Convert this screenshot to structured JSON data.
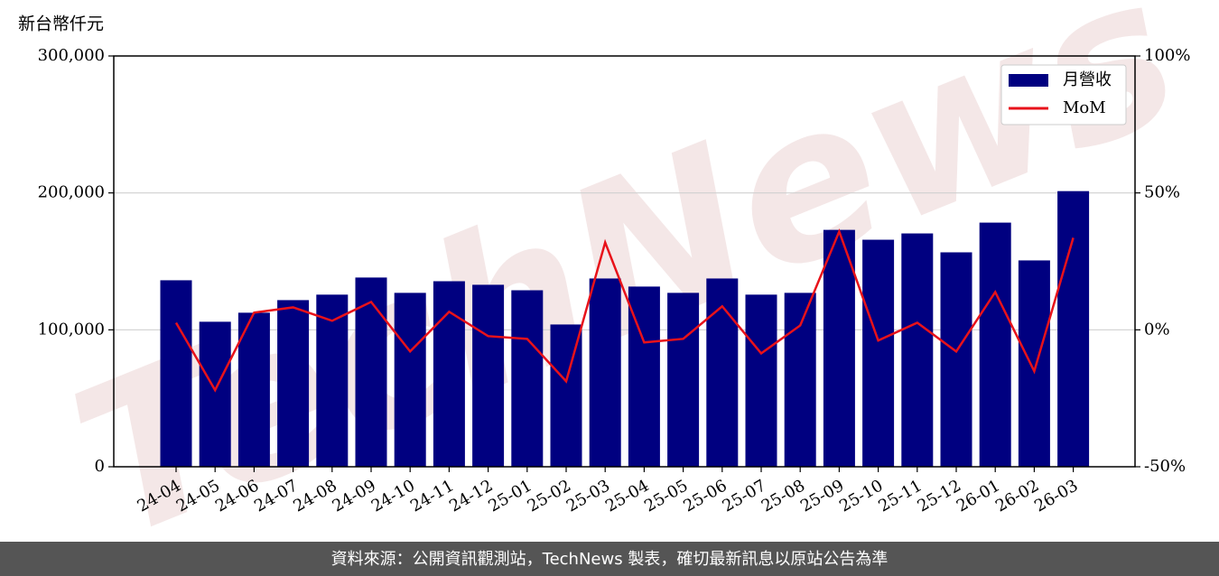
{
  "chart_data": {
    "type": "bar",
    "y_label": "新台幣仟元",
    "watermark": "TechNews",
    "footer": "資料來源：公開資訊觀測站，TechNews 製表，確切最新訊息以原站公告為準",
    "categories": [
      "24-04",
      "24-05",
      "24-06",
      "24-07",
      "24-08",
      "24-09",
      "24-10",
      "24-11",
      "24-12",
      "25-01",
      "25-02",
      "25-03",
      "25-04",
      "25-05",
      "25-06",
      "25-07",
      "25-08",
      "25-09",
      "25-10",
      "25-11",
      "25-12",
      "26-01",
      "26-02",
      "26-03"
    ],
    "series": [
      {
        "name": "月營收",
        "type": "bar",
        "color": "#000080",
        "values": [
          136200,
          105900,
          112500,
          121700,
          125700,
          138200,
          127000,
          135500,
          132900,
          128900,
          103900,
          137500,
          131600,
          127000,
          137500,
          125700,
          127000,
          173000,
          165800,
          170400,
          156600,
          178300,
          150700,
          201300
        ]
      },
      {
        "name": "MoM",
        "type": "line",
        "axis": "y2",
        "color": "#e8121a",
        "values": [
          2.6,
          -22,
          6.3,
          8.2,
          3.3,
          10.2,
          -7.9,
          6.6,
          -2.3,
          -3.3,
          -18.8,
          31.9,
          -4.6,
          -3.3,
          8.6,
          -8.6,
          1.6,
          35.9,
          -3.9,
          2.6,
          -7.9,
          13.8,
          -15.1,
          33.6
        ]
      }
    ],
    "ylim": [
      0,
      300000
    ],
    "yticks": [
      0,
      {
        "value": 100000,
        "label": "100,000"
      },
      {
        "value": 200000,
        "label": "200,000"
      },
      {
        "value": 300000,
        "label": "300,000"
      }
    ],
    "y2lim": [
      -50,
      100
    ],
    "y2ticks": [
      {
        "value": -50,
        "label": "-50%"
      },
      {
        "value": 0,
        "label": "0%"
      },
      {
        "value": 50,
        "label": "50%"
      },
      {
        "value": 100,
        "label": "100%"
      }
    ],
    "grid": true,
    "legend": "upper right"
  }
}
